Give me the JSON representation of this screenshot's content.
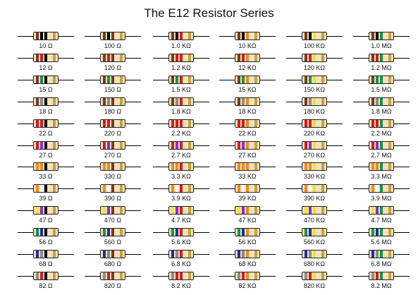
{
  "title": "The E12 Resistor Series",
  "colors": {
    "0": "#000000",
    "1": "#7a3b1a",
    "2": "#e01818",
    "3": "#f28a1a",
    "4": "#f5e616",
    "5": "#12964a",
    "6": "#1a2ea8",
    "7": "#8a2be2",
    "8": "#8c8c8c",
    "9": "#ffffff",
    "gold": "#c9a233",
    "body": "#f1e2c2"
  },
  "digits": [
    [
      1,
      0
    ],
    [
      1,
      2
    ],
    [
      1,
      5
    ],
    [
      1,
      8
    ],
    [
      2,
      2
    ],
    [
      2,
      7
    ],
    [
      3,
      3
    ],
    [
      3,
      9
    ],
    [
      4,
      7
    ],
    [
      5,
      6
    ],
    [
      6,
      8
    ],
    [
      8,
      2
    ]
  ],
  "multipliers": [
    0,
    1,
    2,
    3,
    4,
    5
  ],
  "tolerance_band": "gold",
  "columns": [
    {
      "values": [
        "10 Ω",
        "12 Ω",
        "15 Ω",
        "18 Ω",
        "22 Ω",
        "27 Ω",
        "33 Ω",
        "39 Ω",
        "47 Ω",
        "56 Ω",
        "68 Ω",
        "82 Ω"
      ]
    },
    {
      "values": [
        "100 Ω",
        "120 Ω",
        "150 Ω",
        "180 Ω",
        "220 Ω",
        "270 Ω",
        "330 Ω",
        "390 Ω",
        "470 Ω",
        "560 Ω",
        "680 Ω",
        "820 Ω"
      ]
    },
    {
      "values": [
        "1.0 KΩ",
        "1.2 KΩ",
        "1.5 KΩ",
        "1.8 KΩ",
        "2.2 KΩ",
        "2.7 KΩ",
        "3.3 KΩ",
        "3.9 KΩ",
        "4.7 KΩ",
        "5.6 KΩ",
        "6.8 KΩ",
        "8.2 KΩ"
      ]
    },
    {
      "values": [
        "10 KΩ",
        "12 KΩ",
        "15 KΩ",
        "18 KΩ",
        "22 KΩ",
        "27 KΩ",
        "33 KΩ",
        "39 KΩ",
        "47 KΩ",
        "56 KΩ",
        "68 KΩ",
        "82 KΩ"
      ]
    },
    {
      "values": [
        "100 KΩ",
        "120 KΩ",
        "150 KΩ",
        "180 KΩ",
        "220 KΩ",
        "270 KΩ",
        "330 KΩ",
        "390 KΩ",
        "470 KΩ",
        "560 KΩ",
        "680 KΩ",
        "820 KΩ"
      ]
    },
    {
      "values": [
        "1.0 MΩ",
        "1.2 MΩ",
        "1.5 MΩ",
        "1.8 MΩ",
        "2.2 MΩ",
        "2.7 MΩ",
        "3.3 MΩ",
        "3.9 MΩ",
        "4.7 MΩ",
        "5.6 MΩ",
        "6.8 MΩ",
        "8.2 MΩ"
      ]
    }
  ]
}
